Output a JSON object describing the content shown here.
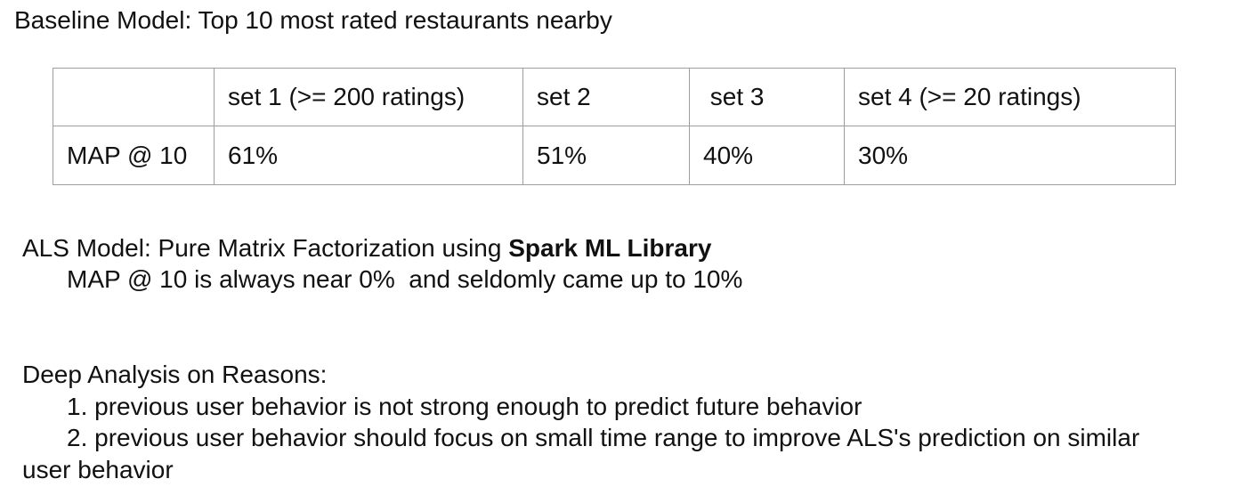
{
  "baseline": {
    "heading": "Baseline Model: Top 10 most rated restaurants nearby",
    "table": {
      "header": [
        "",
        "set 1 (>= 200 ratings)",
        "set 2",
        " set 3",
        "set 4 (>= 20 ratings)"
      ],
      "row": [
        "MAP @ 10",
        "61%",
        "51%",
        "40%",
        "30%"
      ]
    }
  },
  "als": {
    "heading_prefix": "ALS Model: Pure Matrix Factorization using ",
    "heading_bold": "Spark ML Library",
    "detail": "MAP @ 10 is always near 0%  and seldomly came up to 10%"
  },
  "analysis": {
    "heading": "Deep Analysis on Reasons:",
    "item_1": "1. previous user behavior is not strong enough to predict future behavior",
    "item_2": "2. previous user behavior should focus on small time range to improve ALS's prediction on similar",
    "item_2_cont": "user behavior"
  }
}
